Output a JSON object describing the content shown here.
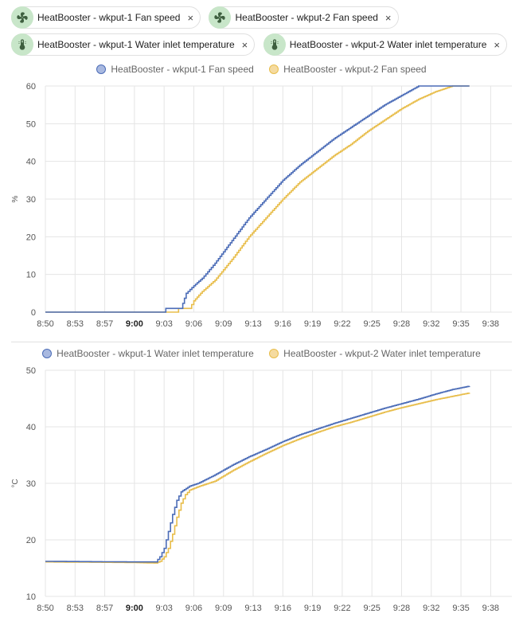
{
  "chips": [
    {
      "label": "HeatBooster - wkput-1 Fan speed",
      "icon": "fan-icon"
    },
    {
      "label": "HeatBooster - wkput-2 Fan speed",
      "icon": "fan-icon"
    },
    {
      "label": "HeatBooster - wkput-1 Water inlet temperature",
      "icon": "thermometer-icon"
    },
    {
      "label": "HeatBooster - wkput-2 Water inlet temperature",
      "icon": "thermometer-icon"
    }
  ],
  "chip_close_glyph": "×",
  "colors": {
    "series1": "#4b6cb7",
    "series1_fill": "#a9b9e0",
    "series2": "#e8bd4a",
    "series2_fill": "#f5dba0",
    "chip_icon_bg": "#c8e6c9",
    "icon": "#3e5f3f",
    "grid": "#e5e5e5"
  },
  "chart_data": [
    {
      "type": "line",
      "title": "",
      "xlabel": "",
      "ylabel": "%",
      "ylim": [
        0,
        60
      ],
      "yticks": [
        "0",
        "10",
        "20",
        "30",
        "40",
        "50",
        "60"
      ],
      "xlim": [
        "8:50",
        "9:40"
      ],
      "xticks": [
        "8:50",
        "8:53",
        "8:57",
        "9:00",
        "9:03",
        "9:06",
        "9:09",
        "9:13",
        "9:16",
        "9:19",
        "9:22",
        "9:25",
        "9:28",
        "9:32",
        "9:35",
        "9:38"
      ],
      "bold_xtick": "9:00",
      "grid": true,
      "legend_position": "top",
      "step": true,
      "series": [
        {
          "name": "HeatBooster - wkput-1 Fan speed",
          "points": [
            [
              "8:50",
              0
            ],
            [
              "9:04",
              0
            ],
            [
              "9:04.2",
              1
            ],
            [
              "9:06",
              1
            ],
            [
              "9:06.6",
              5
            ],
            [
              "9:07.5",
              7
            ],
            [
              "9:08.5",
              9
            ],
            [
              "9:10",
              13
            ],
            [
              "9:12",
              19
            ],
            [
              "9:14",
              25
            ],
            [
              "9:16",
              30
            ],
            [
              "9:18",
              35
            ],
            [
              "9:20",
              39
            ],
            [
              "9:22",
              42.5
            ],
            [
              "9:24",
              46
            ],
            [
              "9:26",
              49
            ],
            [
              "9:28",
              52
            ],
            [
              "9:30",
              55
            ],
            [
              "9:32",
              57.5
            ],
            [
              "9:34",
              60
            ],
            [
              "9:40",
              60
            ]
          ]
        },
        {
          "name": "HeatBooster - wkput-2 Fan speed",
          "points": [
            [
              "8:50",
              0
            ],
            [
              "9:05.5",
              0
            ],
            [
              "9:05.7",
              1
            ],
            [
              "9:07",
              1
            ],
            [
              "9:07.5",
              3
            ],
            [
              "9:08.5",
              5.5
            ],
            [
              "9:10",
              8.5
            ],
            [
              "9:12",
              14
            ],
            [
              "9:14",
              20
            ],
            [
              "9:16",
              25
            ],
            [
              "9:18",
              30
            ],
            [
              "9:20",
              34.5
            ],
            [
              "9:22",
              38
            ],
            [
              "9:24",
              41.5
            ],
            [
              "9:26",
              44.5
            ],
            [
              "9:28",
              48
            ],
            [
              "9:30",
              51
            ],
            [
              "9:32",
              54
            ],
            [
              "9:34",
              56.5
            ],
            [
              "9:36",
              58.5
            ],
            [
              "9:38",
              60
            ],
            [
              "9:40",
              60
            ]
          ]
        }
      ]
    },
    {
      "type": "line",
      "title": "",
      "xlabel": "",
      "ylabel": "°C",
      "ylim": [
        10,
        50
      ],
      "yticks": [
        "10",
        "20",
        "30",
        "40",
        "50"
      ],
      "xlim": [
        "8:50",
        "9:40"
      ],
      "xticks": [
        "8:50",
        "8:53",
        "8:57",
        "9:00",
        "9:03",
        "9:06",
        "9:09",
        "9:13",
        "9:16",
        "9:19",
        "9:22",
        "9:25",
        "9:28",
        "9:32",
        "9:35",
        "9:38"
      ],
      "bold_xtick": "9:00",
      "grid": true,
      "legend_position": "top",
      "step": true,
      "series": [
        {
          "name": "HeatBooster - wkput-1 Water inlet temperature",
          "points": [
            [
              "8:50",
              16.2
            ],
            [
              "9:00",
              16.1
            ],
            [
              "9:03",
              16.1
            ],
            [
              "9:03.5",
              17
            ],
            [
              "9:04",
              18.5
            ],
            [
              "9:04.5",
              21.5
            ],
            [
              "9:05",
              24.5
            ],
            [
              "9:05.5",
              27
            ],
            [
              "9:06",
              28.5
            ],
            [
              "9:07",
              29.5
            ],
            [
              "9:08",
              30
            ],
            [
              "9:10",
              31.5
            ],
            [
              "9:12",
              33.2
            ],
            [
              "9:14",
              34.7
            ],
            [
              "9:16",
              36
            ],
            [
              "9:18",
              37.4
            ],
            [
              "9:20",
              38.6
            ],
            [
              "9:22",
              39.6
            ],
            [
              "9:24",
              40.6
            ],
            [
              "9:26",
              41.5
            ],
            [
              "9:28",
              42.4
            ],
            [
              "9:30",
              43.3
            ],
            [
              "9:32",
              44.1
            ],
            [
              "9:34",
              44.9
            ],
            [
              "9:36",
              45.8
            ],
            [
              "9:38",
              46.6
            ],
            [
              "9:40",
              47.2
            ]
          ]
        },
        {
          "name": "HeatBooster - wkput-2 Water inlet temperature",
          "points": [
            [
              "8:50",
              16.1
            ],
            [
              "9:00",
              16.0
            ],
            [
              "9:03",
              15.9
            ],
            [
              "9:03.5",
              16.2
            ],
            [
              "9:04",
              17
            ],
            [
              "9:04.5",
              18.5
            ],
            [
              "9:05",
              21
            ],
            [
              "9:05.5",
              24
            ],
            [
              "9:06",
              26.5
            ],
            [
              "9:06.5",
              28
            ],
            [
              "9:07",
              28.8
            ],
            [
              "9:08",
              29.4
            ],
            [
              "9:10",
              30.4
            ],
            [
              "9:12",
              32.2
            ],
            [
              "9:14",
              33.8
            ],
            [
              "9:16",
              35.3
            ],
            [
              "9:18",
              36.7
            ],
            [
              "9:20",
              37.9
            ],
            [
              "9:22",
              39
            ],
            [
              "9:24",
              40
            ],
            [
              "9:26",
              40.8
            ],
            [
              "9:28",
              41.7
            ],
            [
              "9:30",
              42.6
            ],
            [
              "9:32",
              43.4
            ],
            [
              "9:34",
              44.1
            ],
            [
              "9:36",
              44.8
            ],
            [
              "9:38",
              45.4
            ],
            [
              "9:40",
              46
            ]
          ]
        }
      ]
    }
  ]
}
